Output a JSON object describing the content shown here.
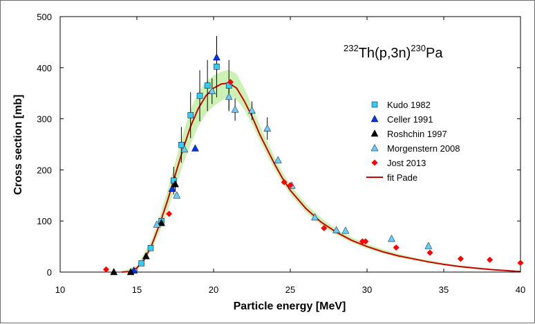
{
  "chart_data": {
    "type": "scatter",
    "title_parts": {
      "mass1": "232",
      "reaction": "Th(p,3n)",
      "mass2": "230",
      "product": "Pa"
    },
    "xlabel": "Particle energy [MeV]",
    "ylabel": "Cross section [mb]",
    "xlim": [
      10,
      40
    ],
    "ylim": [
      0,
      500
    ],
    "xticks": [
      10,
      15,
      20,
      25,
      30,
      35,
      40
    ],
    "yticks": [
      0,
      100,
      200,
      300,
      400,
      500
    ],
    "legend_position": "right",
    "colors": {
      "kudo": "#33ccff",
      "celler": "#0033ff",
      "roshchin": "#000000",
      "morgenstern": "#66ccff",
      "jost": "#ff0000",
      "fit": "#cc0000",
      "band": "#ccf2b3"
    },
    "series": [
      {
        "name": "Kudo 1982",
        "marker": "square",
        "points": [
          [
            15.3,
            17
          ],
          [
            15.9,
            47
          ],
          [
            16.6,
            100
          ],
          [
            17.4,
            179
          ],
          [
            17.9,
            249
          ],
          [
            18.5,
            307
          ],
          [
            19.1,
            345
          ],
          [
            19.6,
            365
          ],
          [
            20.2,
            402
          ],
          [
            21.0,
            365
          ]
        ],
        "errors": [
          0,
          0,
          0,
          27,
          35,
          45,
          50,
          50,
          60,
          50
        ]
      },
      {
        "name": "Celler 1991",
        "marker": "triangle",
        "points": [
          [
            14.8,
            3
          ],
          [
            17.3,
            163
          ],
          [
            18.8,
            242
          ],
          [
            20.2,
            420
          ]
        ],
        "errors": [
          0,
          0,
          0,
          42
        ]
      },
      {
        "name": "Roshchin 1997",
        "marker": "triangle",
        "points": [
          [
            13.5,
            0
          ],
          [
            14.6,
            0
          ],
          [
            15.6,
            31
          ],
          [
            16.6,
            96
          ],
          [
            17.5,
            172
          ]
        ],
        "errors": [
          0,
          0,
          0,
          0,
          15
        ]
      },
      {
        "name": "Morgenstern 2008",
        "marker": "triangle",
        "points": [
          [
            16.3,
            93
          ],
          [
            17.6,
            150
          ],
          [
            18.1,
            240
          ],
          [
            19.9,
            354
          ],
          [
            21.0,
            343
          ],
          [
            21.4,
            318
          ],
          [
            22.5,
            316
          ],
          [
            23.5,
            281
          ],
          [
            24.2,
            219
          ],
          [
            25.1,
            169
          ],
          [
            26.6,
            107
          ],
          [
            28.0,
            82
          ],
          [
            28.6,
            81
          ],
          [
            31.6,
            65
          ],
          [
            34.0,
            51
          ]
        ],
        "errors": [
          0,
          0,
          0,
          25,
          25,
          22,
          18,
          22,
          0,
          0,
          0,
          0,
          0,
          0,
          0
        ]
      },
      {
        "name": "Jost 2013",
        "marker": "diamond",
        "points": [
          [
            13.0,
            5
          ],
          [
            17.1,
            114
          ],
          [
            21.1,
            372
          ],
          [
            24.6,
            176
          ],
          [
            25.0,
            170
          ],
          [
            27.2,
            86
          ],
          [
            29.7,
            60
          ],
          [
            29.9,
            60
          ],
          [
            31.9,
            48
          ],
          [
            34.1,
            38
          ],
          [
            36.1,
            26
          ],
          [
            38.0,
            24
          ],
          [
            40.0,
            18
          ]
        ]
      },
      {
        "name": "fit Pade",
        "marker": "line",
        "points": [
          [
            14.0,
            0
          ],
          [
            14.5,
            1
          ],
          [
            15.0,
            8
          ],
          [
            15.5,
            25
          ],
          [
            16.0,
            55
          ],
          [
            16.5,
            95
          ],
          [
            17.0,
            140
          ],
          [
            17.5,
            190
          ],
          [
            18.0,
            240
          ],
          [
            18.5,
            285
          ],
          [
            19.0,
            320
          ],
          [
            19.5,
            345
          ],
          [
            20.0,
            360
          ],
          [
            20.5,
            368
          ],
          [
            21.0,
            370
          ],
          [
            21.5,
            360
          ],
          [
            22.0,
            335
          ],
          [
            22.5,
            305
          ],
          [
            23.0,
            270
          ],
          [
            23.5,
            240
          ],
          [
            24.0,
            210
          ],
          [
            24.5,
            183
          ],
          [
            25.0,
            160
          ],
          [
            26.0,
            125
          ],
          [
            27.0,
            98
          ],
          [
            28.0,
            78
          ],
          [
            29.0,
            62
          ],
          [
            30.0,
            50
          ],
          [
            31.0,
            40
          ],
          [
            32.0,
            32
          ],
          [
            33.0,
            26
          ],
          [
            34.0,
            20
          ],
          [
            35.0,
            15
          ],
          [
            36.0,
            11
          ],
          [
            37.0,
            8
          ],
          [
            38.0,
            5
          ],
          [
            39.0,
            3
          ],
          [
            40.0,
            1
          ]
        ]
      }
    ],
    "band": {
      "name": "uncertainty band",
      "x": [
        14.0,
        15.0,
        16.0,
        16.5,
        17.0,
        17.5,
        18.0,
        18.5,
        19.0,
        19.5,
        20.0,
        20.5,
        21.0,
        21.5,
        22.0,
        22.5,
        23.0,
        23.5,
        24.0,
        24.5,
        25.0,
        26.0,
        27.0,
        28.0,
        29.0,
        30.0,
        31.0,
        32.0,
        33.0,
        34.0,
        35.0,
        36.0,
        37.0,
        38.0,
        39.0,
        40.0
      ],
      "lower": [
        0,
        5,
        45,
        80,
        120,
        165,
        210,
        250,
        285,
        310,
        325,
        335,
        345,
        338,
        318,
        290,
        258,
        228,
        200,
        174,
        152,
        118,
        92,
        73,
        58,
        46,
        37,
        29,
        23,
        18,
        13,
        9,
        6,
        4,
        2,
        0
      ],
      "upper": [
        1,
        12,
        65,
        110,
        160,
        215,
        270,
        318,
        352,
        372,
        385,
        392,
        396,
        388,
        360,
        326,
        288,
        256,
        224,
        195,
        170,
        134,
        106,
        84,
        68,
        55,
        45,
        36,
        29,
        23,
        18,
        13,
        10,
        7,
        4,
        2
      ]
    }
  }
}
